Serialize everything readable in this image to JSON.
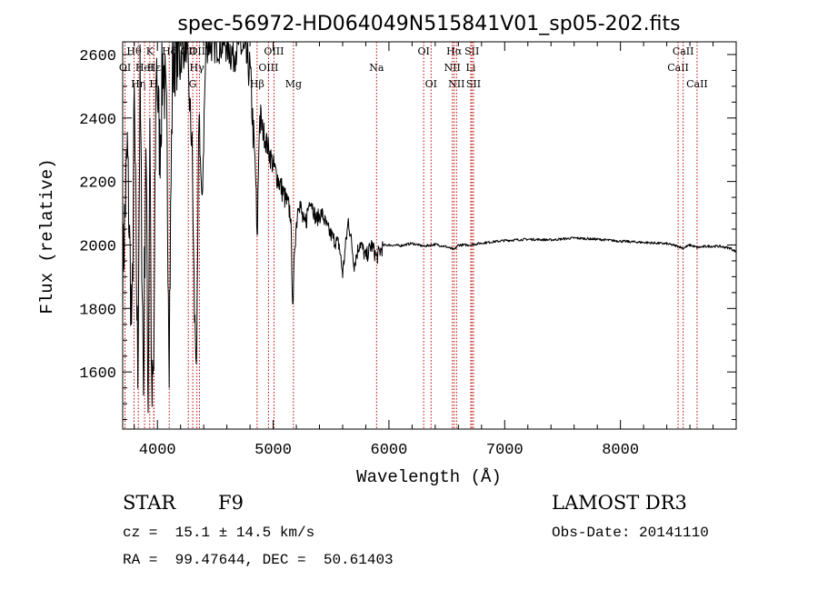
{
  "chart_data": {
    "type": "line",
    "title": "spec-56972-HD064049N515841V01_sp05-202.fits",
    "xlabel": "Wavelength (Å)",
    "ylabel": "Flux (relative)",
    "xlim": [
      3700,
      9000
    ],
    "ylim": [
      1420,
      2640
    ],
    "x_ticks": [
      4000,
      5000,
      6000,
      7000,
      8000
    ],
    "y_ticks": [
      1600,
      1800,
      2000,
      2200,
      2400,
      2600
    ],
    "x_tick_labels": [
      "4000",
      "5000",
      "6000",
      "7000",
      "8000"
    ],
    "y_tick_labels": [
      "1600",
      "1800",
      "2000",
      "2200",
      "2400",
      "2600"
    ],
    "grid": false,
    "series": [
      {
        "name": "spectrum",
        "x": [
          3700,
          3740,
          3780,
          3800,
          3830,
          3850,
          3880,
          3900,
          3920,
          3935,
          3950,
          3968,
          3990,
          4020,
          4050,
          4080,
          4102,
          4130,
          4160,
          4200,
          4250,
          4300,
          4320,
          4340,
          4360,
          4383,
          4420,
          4480,
          4550,
          4600,
          4650,
          4700,
          4750,
          4800,
          4850,
          4861,
          4880,
          4920,
          4960,
          5000,
          5050,
          5100,
          5150,
          5172,
          5185,
          5220,
          5270,
          5320,
          5370,
          5420,
          5470,
          5520,
          5570,
          5600,
          5650,
          5700,
          5750,
          5800,
          5850,
          5893,
          5920,
          5960,
          6000,
          6100,
          6200,
          6300,
          6400,
          6500,
          6563,
          6600,
          6700,
          6800,
          6900,
          7000,
          7200,
          7400,
          7600,
          7800,
          8000,
          8200,
          8400,
          8498,
          8542,
          8600,
          8662,
          8750,
          8850,
          8950,
          9000
        ],
        "values": [
          1900,
          2300,
          1700,
          2450,
          1600,
          2500,
          1550,
          2350,
          1500,
          2450,
          1480,
          1600,
          2600,
          2300,
          2600,
          2350,
          1700,
          2550,
          2640,
          2600,
          2640,
          2300,
          1780,
          1620,
          2450,
          2100,
          2640,
          2640,
          2640,
          2640,
          2600,
          2640,
          2600,
          2550,
          2200,
          1980,
          2400,
          2350,
          2300,
          2250,
          2200,
          2150,
          2100,
          1780,
          2000,
          2150,
          2050,
          2150,
          2080,
          2100,
          2050,
          2020,
          2000,
          1910,
          2080,
          1940,
          2010,
          1960,
          2000,
          1960,
          1980,
          2000,
          2000,
          1998,
          2005,
          1996,
          2002,
          1994,
          1985,
          2000,
          2000,
          2006,
          2010,
          2014,
          2018,
          2016,
          2022,
          2018,
          2012,
          2008,
          2004,
          1996,
          1990,
          2000,
          1992,
          1996,
          1996,
          1990,
          1978
        ]
      }
    ],
    "line_markers": [
      {
        "label": "Hθ",
        "wavelength": 3798,
        "row": 1
      },
      {
        "label": "OI",
        "wavelength": 3720,
        "row": 2
      },
      {
        "label": "Hη",
        "wavelength": 3835,
        "row": 3
      },
      {
        "label": "HeI",
        "wavelength": 3889,
        "row": 2
      },
      {
        "label": "K",
        "wavelength": 3934,
        "row": 1
      },
      {
        "label": "H",
        "wavelength": 3968,
        "row": 3
      },
      {
        "label": "Hε",
        "wavelength": 3970,
        "row": 2
      },
      {
        "label": "Hδ",
        "wavelength": 4102,
        "row": 1
      },
      {
        "label": "CII",
        "wavelength": 4267,
        "row": 1
      },
      {
        "label": "Hγ",
        "wavelength": 4341,
        "row": 2
      },
      {
        "label": "G",
        "wavelength": 4305,
        "row": 3
      },
      {
        "label": "OIII",
        "wavelength": 4363,
        "row": 1
      },
      {
        "label": "Hβ",
        "wavelength": 4861,
        "row": 3
      },
      {
        "label": "OIII",
        "wavelength": 4959,
        "row": 2
      },
      {
        "label": "OIII",
        "wavelength": 5007,
        "row": 1
      },
      {
        "label": "Mg",
        "wavelength": 5175,
        "row": 3
      },
      {
        "label": "Na",
        "wavelength": 5893,
        "row": 2
      },
      {
        "label": "OI",
        "wavelength": 6300,
        "row": 1
      },
      {
        "label": "OI",
        "wavelength": 6364,
        "row": 3
      },
      {
        "label": "Hα",
        "wavelength": 6563,
        "row": 1
      },
      {
        "label": "NII",
        "wavelength": 6548,
        "row": 2
      },
      {
        "label": "NII",
        "wavelength": 6584,
        "row": 3
      },
      {
        "label": "SII",
        "wavelength": 6717,
        "row": 1
      },
      {
        "label": "Li",
        "wavelength": 6707,
        "row": 2
      },
      {
        "label": "SII",
        "wavelength": 6731,
        "row": 3
      },
      {
        "label": "CaII",
        "wavelength": 8498,
        "row": 2
      },
      {
        "label": "CaII",
        "wavelength": 8542,
        "row": 1
      },
      {
        "label": "CaII",
        "wavelength": 8662,
        "row": 3
      }
    ],
    "info": {
      "object_class": "STAR",
      "subclass": "F9",
      "survey": "LAMOST DR3",
      "redshift": "cz =  15.1 ± 14.5 km/s",
      "obs_date": "Obs-Date: 20141110",
      "coords": "RA =  99.47644, DEC =  50.61403"
    },
    "colors": {
      "line": "#000000",
      "marker": "#c00000",
      "axes": "#000000",
      "background": "#ffffff"
    }
  }
}
